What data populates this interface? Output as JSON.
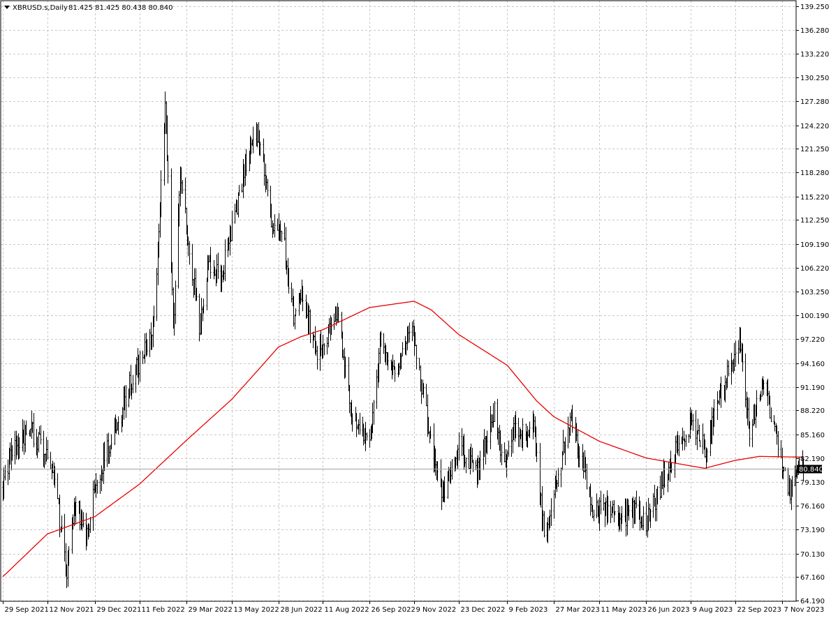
{
  "header": {
    "symbol_label": "XBRUSD.s,Daily",
    "ohlc": "81.425 81.425 80.438 80.840"
  },
  "chart_data": {
    "type": "ohlc",
    "symbol": "XBRUSD.s",
    "timeframe": "Daily",
    "ylim": [
      64.19,
      139.25
    ],
    "grid": true,
    "y_ticks": [
      "139.250",
      "136.280",
      "133.220",
      "130.250",
      "127.280",
      "124.220",
      "121.250",
      "118.280",
      "115.220",
      "112.250",
      "109.190",
      "106.220",
      "103.250",
      "100.190",
      "97.220",
      "94.160",
      "91.190",
      "88.220",
      "85.160",
      "82.190",
      "79.130",
      "76.160",
      "73.190",
      "70.130",
      "67.160",
      "64.190"
    ],
    "x_ticks": [
      "29 Sep 2021",
      "12 Nov 2021",
      "29 Dec 2021",
      "11 Feb 2022",
      "29 Mar 2022",
      "13 May 2022",
      "28 Jun 2022",
      "11 Aug 2022",
      "26 Sep 2022",
      "9 Nov 2022",
      "23 Dec 2022",
      "9 Feb 2023",
      "27 Mar 2023",
      "11 May 2023",
      "26 Jun 2023",
      "9 Aug 2023",
      "22 Sep 2023",
      "7 Nov 2023"
    ],
    "last_price": "80.840",
    "price_anchors": [
      {
        "date": "2021-09-29",
        "close": 78.5
      },
      {
        "date": "2021-10-06",
        "close": 82.5
      },
      {
        "date": "2021-10-25",
        "close": 86.0
      },
      {
        "date": "2021-11-01",
        "close": 84.5
      },
      {
        "date": "2021-11-10",
        "close": 83.0
      },
      {
        "date": "2021-11-19",
        "close": 78.9
      },
      {
        "date": "2021-11-26",
        "close": 72.7
      },
      {
        "date": "2021-12-01",
        "close": 67.5
      },
      {
        "date": "2021-12-08",
        "close": 76.0
      },
      {
        "date": "2021-12-20",
        "close": 72.0
      },
      {
        "date": "2021-12-29",
        "close": 78.9
      },
      {
        "date": "2022-01-13",
        "close": 84.5
      },
      {
        "date": "2022-01-26",
        "close": 89.5
      },
      {
        "date": "2022-02-11",
        "close": 94.4
      },
      {
        "date": "2022-02-24",
        "close": 99.0
      },
      {
        "date": "2022-03-01",
        "close": 108.0
      },
      {
        "date": "2022-03-08",
        "close": 127.9
      },
      {
        "date": "2022-03-14",
        "close": 106.9
      },
      {
        "date": "2022-03-16",
        "close": 98.0
      },
      {
        "date": "2022-03-23",
        "close": 118.5
      },
      {
        "date": "2022-04-11",
        "close": 98.5
      },
      {
        "date": "2022-04-20",
        "close": 107.0
      },
      {
        "date": "2022-05-02",
        "close": 105.0
      },
      {
        "date": "2022-05-13",
        "close": 111.5
      },
      {
        "date": "2022-05-27",
        "close": 119.4
      },
      {
        "date": "2022-06-08",
        "close": 123.5
      },
      {
        "date": "2022-06-22",
        "close": 111.7
      },
      {
        "date": "2022-07-01",
        "close": 111.5
      },
      {
        "date": "2022-07-14",
        "close": 99.1
      },
      {
        "date": "2022-07-22",
        "close": 103.2
      },
      {
        "date": "2022-08-05",
        "close": 94.9
      },
      {
        "date": "2022-08-26",
        "close": 100.5
      },
      {
        "date": "2022-09-07",
        "close": 88.0
      },
      {
        "date": "2022-09-26",
        "close": 84.1
      },
      {
        "date": "2022-10-07",
        "close": 97.9
      },
      {
        "date": "2022-10-20",
        "close": 92.4
      },
      {
        "date": "2022-11-07",
        "close": 98.6
      },
      {
        "date": "2022-11-21",
        "close": 87.5
      },
      {
        "date": "2022-12-07",
        "close": 77.0
      },
      {
        "date": "2022-12-23",
        "close": 84.0
      },
      {
        "date": "2023-01-10",
        "close": 80.0
      },
      {
        "date": "2023-01-27",
        "close": 88.5
      },
      {
        "date": "2023-02-06",
        "close": 80.5
      },
      {
        "date": "2023-02-14",
        "close": 85.5
      },
      {
        "date": "2023-03-07",
        "close": 86.0
      },
      {
        "date": "2023-03-17",
        "close": 72.5
      },
      {
        "date": "2023-03-27",
        "close": 78.1
      },
      {
        "date": "2023-04-12",
        "close": 87.3
      },
      {
        "date": "2023-04-28",
        "close": 79.5
      },
      {
        "date": "2023-05-05",
        "close": 75.3
      },
      {
        "date": "2023-05-17",
        "close": 75.9
      },
      {
        "date": "2023-06-01",
        "close": 74.3
      },
      {
        "date": "2023-06-15",
        "close": 76.0
      },
      {
        "date": "2023-06-26",
        "close": 74.2
      },
      {
        "date": "2023-07-14",
        "close": 79.5
      },
      {
        "date": "2023-07-28",
        "close": 84.4
      },
      {
        "date": "2023-08-11",
        "close": 86.8
      },
      {
        "date": "2023-08-23",
        "close": 83.2
      },
      {
        "date": "2023-09-07",
        "close": 90.6
      },
      {
        "date": "2023-09-27",
        "close": 96.2
      },
      {
        "date": "2023-10-06",
        "close": 84.6
      },
      {
        "date": "2023-10-19",
        "close": 92.4
      },
      {
        "date": "2023-11-01",
        "close": 84.6
      },
      {
        "date": "2023-11-16",
        "close": 77.4
      },
      {
        "date": "2023-11-22",
        "close": 81.4
      },
      {
        "date": "2023-11-28",
        "close": 80.84
      }
    ],
    "ma_anchors": [
      {
        "date": "2021-09-29",
        "value": 67.2
      },
      {
        "date": "2021-11-12",
        "value": 72.6
      },
      {
        "date": "2021-12-29",
        "value": 74.8
      },
      {
        "date": "2022-02-11",
        "value": 78.9
      },
      {
        "date": "2022-03-29",
        "value": 84.4
      },
      {
        "date": "2022-05-13",
        "value": 89.6
      },
      {
        "date": "2022-06-10",
        "value": 93.6
      },
      {
        "date": "2022-06-28",
        "value": 96.2
      },
      {
        "date": "2022-07-20",
        "value": 97.5
      },
      {
        "date": "2022-08-11",
        "value": 98.4
      },
      {
        "date": "2022-09-26",
        "value": 101.2
      },
      {
        "date": "2022-11-09",
        "value": 102.0
      },
      {
        "date": "2022-11-26",
        "value": 100.9
      },
      {
        "date": "2022-12-23",
        "value": 97.8
      },
      {
        "date": "2023-02-09",
        "value": 93.9
      },
      {
        "date": "2023-03-10",
        "value": 89.4
      },
      {
        "date": "2023-03-27",
        "value": 87.4
      },
      {
        "date": "2023-05-11",
        "value": 84.3
      },
      {
        "date": "2023-06-26",
        "value": 82.2
      },
      {
        "date": "2023-08-09",
        "value": 81.2
      },
      {
        "date": "2023-08-23",
        "value": 80.9
      },
      {
        "date": "2023-09-22",
        "value": 81.9
      },
      {
        "date": "2023-10-16",
        "value": 82.4
      },
      {
        "date": "2023-11-28",
        "value": 82.3
      }
    ],
    "colors": {
      "bars": "#000000",
      "moving_average": "#e80000",
      "grid": "#c8c8c8",
      "price_line": "#a0a0a0",
      "price_label_bg": "#000000",
      "price_label_text": "#ffffff"
    }
  }
}
